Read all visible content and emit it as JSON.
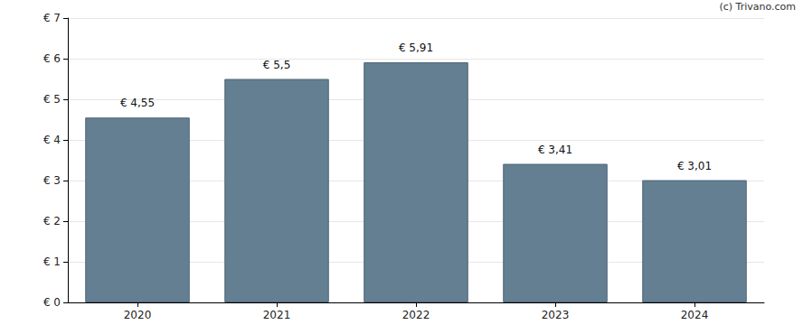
{
  "chart_data": {
    "type": "bar",
    "annotation": "(c) Trivano.com",
    "categories": [
      "2020",
      "2021",
      "2022",
      "2023",
      "2024"
    ],
    "values": [
      4.55,
      5.5,
      5.91,
      3.41,
      3.01
    ],
    "value_labels": [
      "€ 4,55",
      "€ 5,5",
      "€ 5,91",
      "€ 3,41",
      "€ 3,01"
    ],
    "data_labels": true,
    "color": "#657f92",
    "ylim": [
      0,
      7
    ],
    "yticks": [
      {
        "value": 0,
        "label": "€ 0"
      },
      {
        "value": 1,
        "label": "€ 1"
      },
      {
        "value": 2,
        "label": "€ 2"
      },
      {
        "value": 3,
        "label": "€ 3"
      },
      {
        "value": 4,
        "label": "€ 4"
      },
      {
        "value": 5,
        "label": "€ 5"
      },
      {
        "value": 6,
        "label": "€ 6"
      },
      {
        "value": 7,
        "label": "€ 7"
      }
    ],
    "grid": true
  }
}
